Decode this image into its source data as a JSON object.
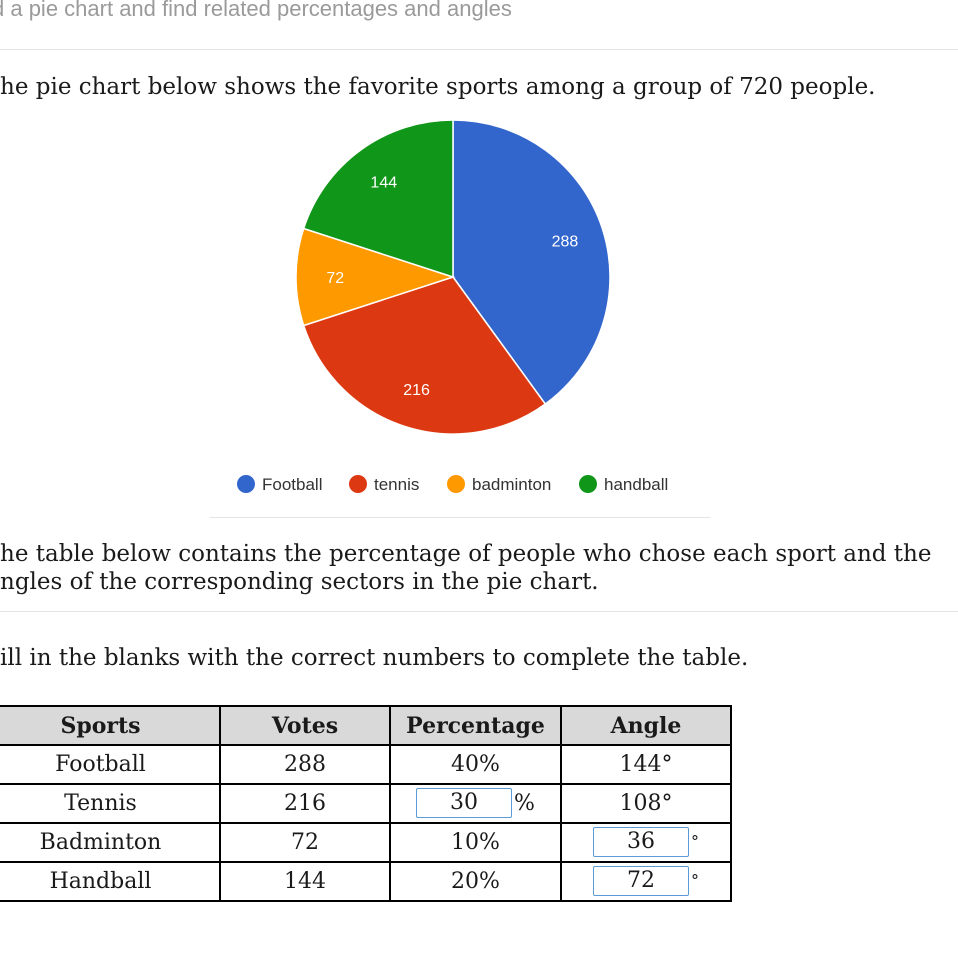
{
  "header": {
    "title": "d a pie chart and find related percentages and angles"
  },
  "intro": {
    "text": "he pie chart below shows the favorite sports among a group of 720 people."
  },
  "colors": {
    "football": "#3366CC",
    "tennis": "#DC3912",
    "badminton": "#FF9900",
    "handball": "#109618"
  },
  "chart_data": {
    "type": "pie",
    "categories": [
      "Football",
      "tennis",
      "badminton",
      "handball"
    ],
    "values": [
      288,
      216,
      72,
      144
    ],
    "data_labels": [
      "288",
      "216",
      "72",
      "144"
    ],
    "colors": [
      "#3366CC",
      "#DC3912",
      "#FF9900",
      "#109618"
    ],
    "legend": "bottom",
    "title": ""
  },
  "table_intro": {
    "line1": "he table below contains the percentage of people who chose each sport and the",
    "line2": "ngles of the corresponding sectors in the pie chart."
  },
  "instruction": {
    "text": "ill in the blanks with the correct numbers to complete the table."
  },
  "table": {
    "headers": [
      "Sports",
      "Votes",
      "Percentage",
      "Angle"
    ],
    "rows": [
      {
        "sport": "Football",
        "votes": "288",
        "percentage": "40%",
        "angle": "144°"
      },
      {
        "sport": "Tennis",
        "votes": "216",
        "percentage_input": "30",
        "percentage_unit": "%",
        "angle": "108°"
      },
      {
        "sport": "Badminton",
        "votes": "72",
        "percentage": "10%",
        "angle_input": "36",
        "angle_unit": "°"
      },
      {
        "sport": "Handball",
        "votes": "144",
        "percentage": "20%",
        "angle_input": "72",
        "angle_unit": "°"
      }
    ]
  }
}
